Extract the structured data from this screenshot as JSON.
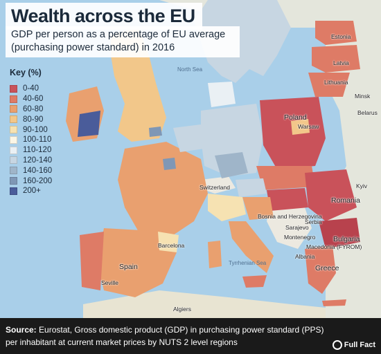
{
  "header": {
    "title": "Wealth across the EU",
    "subtitle": "GDP per person as a percentage of EU average (purchasing power standard) in 2016"
  },
  "legend": {
    "title": "Key (%)",
    "items": [
      {
        "label": "0-40",
        "color": "#c9525a"
      },
      {
        "label": "40-60",
        "color": "#de7b66"
      },
      {
        "label": "60-80",
        "color": "#e9a06f"
      },
      {
        "label": "80-90",
        "color": "#f2c78a"
      },
      {
        "label": "90-100",
        "color": "#f6e2b2"
      },
      {
        "label": "100-110",
        "color": "#fbf6e6"
      },
      {
        "label": "110-120",
        "color": "#eaf0f4"
      },
      {
        "label": "120-140",
        "color": "#c7d6e2"
      },
      {
        "label": "140-160",
        "color": "#9fb5c9"
      },
      {
        "label": "160-200",
        "color": "#7f97b5"
      },
      {
        "label": "200+",
        "color": "#4a5c9a"
      }
    ]
  },
  "map_labels": {
    "estonia": "Estonia",
    "latvia": "Latvia",
    "lithuania": "Lithuania",
    "minsk": "Minsk",
    "belarus": "Belarus",
    "poland": "Poland",
    "warsaw": "Warsaw",
    "north_sea": "North Sea",
    "switzerland": "Switzerland",
    "romania": "Romania",
    "bulgaria": "Bulgaria",
    "serbia": "Serbia",
    "bosnia": "Bosnia and Herzegovina",
    "sarajevo": "Sarajevo",
    "montenegro": "Montenegro",
    "macedonia": "Macedonia (FYROM)",
    "albania": "Albania",
    "greece": "Greece",
    "tyrrhenian": "Tyrrhenian Sea",
    "barcelona": "Barcelona",
    "spain": "Spain",
    "seville": "Seville",
    "algiers": "Algiers",
    "kyiv": "Kyiv"
  },
  "footer": {
    "source_label": "Source:",
    "source_text": " Eurostat, Gross domestic product (GDP) in purchasing power standard (PPS) per inhabitant at current market prices by NUTS 2 level regions",
    "brand": "Full Fact"
  }
}
